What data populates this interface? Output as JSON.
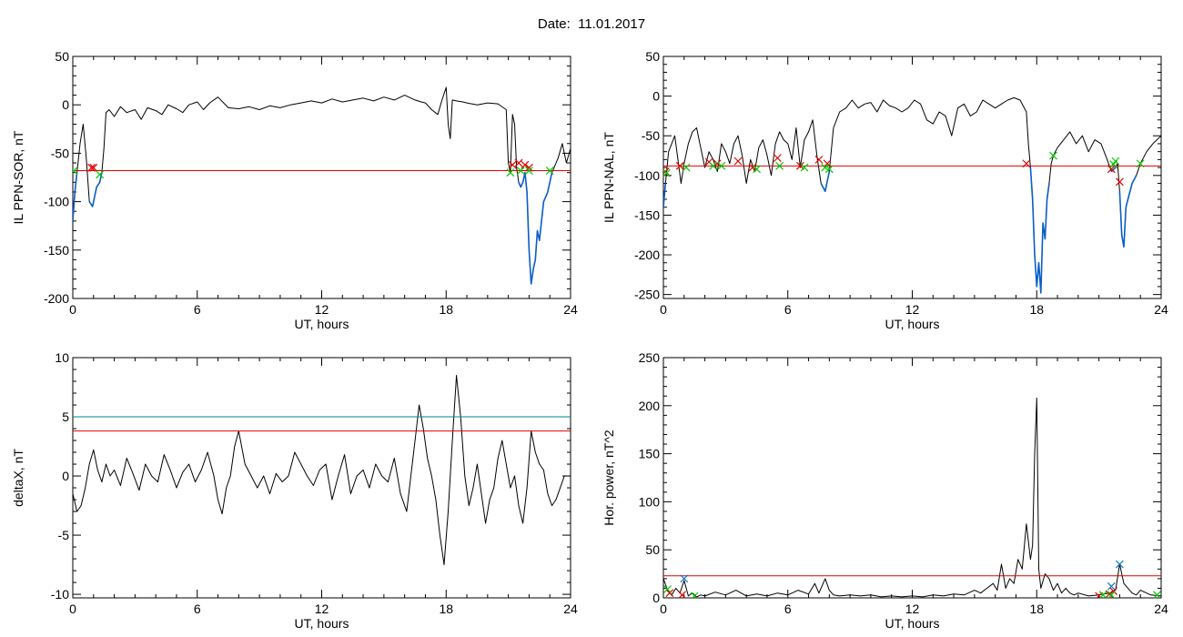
{
  "figure": {
    "title": "Date:  11.01.2017"
  },
  "colors": {
    "curve": "#000000",
    "below": "#0a5ec9",
    "threshold_red": "#e00000",
    "threshold_teal": "#008a8a",
    "mark_red": "#e00000",
    "mark_green": "#00c800",
    "mark_blue": "#0a78c8"
  },
  "chart_data": [
    {
      "id": "ppn-sor",
      "type": "line",
      "xlabel": "UT, hours",
      "ylabel": "IL PPN-SOR, nT",
      "xlim": [
        0,
        24
      ],
      "ylim": [
        -200,
        50
      ],
      "xticks": [
        0,
        6,
        12,
        18,
        24
      ],
      "yticks": [
        50,
        0,
        -50,
        -100,
        -150,
        -200
      ],
      "threshold": -68,
      "threshold_color": "threshold_red",
      "series": [
        {
          "x": [
            0,
            0.1,
            0.2,
            0.35,
            0.5,
            0.65,
            0.8,
            0.95,
            1.05,
            1.15,
            1.3,
            1.4,
            1.5,
            1.6,
            1.75,
            2.0,
            2.3,
            2.6,
            3.0,
            3.3,
            3.6,
            4.0,
            4.3,
            4.6,
            5.0,
            5.3,
            5.6,
            6.0,
            6.3,
            6.6,
            7.0,
            7.5,
            8.0,
            8.5,
            9.0,
            9.5,
            10.0,
            10.5,
            11.0,
            11.5,
            12.0,
            12.5,
            13.0,
            13.5,
            14.0,
            14.5,
            15.0,
            15.5,
            16.0,
            16.5,
            16.8,
            17.0,
            17.3,
            17.6,
            17.8,
            18.0,
            18.1,
            18.2,
            18.3,
            18.5,
            18.8,
            19.0,
            19.5,
            20.0,
            20.5,
            20.9,
            21.0,
            21.1,
            21.2,
            21.3,
            21.4,
            21.5,
            21.6,
            21.7,
            21.8,
            21.9,
            22.0,
            22.1,
            22.2,
            22.3,
            22.4,
            22.5,
            22.6,
            22.7,
            22.8,
            22.9,
            23.0,
            23.1,
            23.2,
            23.4,
            23.6,
            23.8,
            24.0
          ],
          "values": [
            -120,
            -90,
            -70,
            -40,
            -20,
            -55,
            -100,
            -105,
            -95,
            -85,
            -80,
            -70,
            -45,
            -8,
            -5,
            -12,
            -2,
            -8,
            -5,
            -15,
            -3,
            -6,
            -10,
            0,
            -4,
            -8,
            0,
            3,
            -5,
            2,
            8,
            -3,
            -4,
            -2,
            -5,
            -1,
            -3,
            0,
            2,
            4,
            2,
            6,
            3,
            5,
            7,
            4,
            8,
            5,
            10,
            5,
            3,
            2,
            -5,
            -10,
            5,
            18,
            -20,
            -35,
            5,
            4,
            3,
            2,
            0,
            2,
            1,
            -5,
            -60,
            -70,
            -10,
            -20,
            -65,
            -80,
            -85,
            -80,
            -70,
            -90,
            -150,
            -185,
            -170,
            -160,
            -130,
            -140,
            -120,
            -100,
            -95,
            -90,
            -80,
            -70,
            -65,
            -55,
            -40,
            -60,
            -45
          ]
        }
      ],
      "marks_red": [
        [
          0.9,
          -65
        ],
        [
          1.0,
          -65
        ],
        [
          21.2,
          -62
        ],
        [
          21.5,
          -60
        ],
        [
          21.8,
          -62
        ],
        [
          22.0,
          -65
        ]
      ],
      "marks_green": [
        [
          0.05,
          -68
        ],
        [
          1.3,
          -72
        ],
        [
          21.1,
          -70
        ],
        [
          21.6,
          -68
        ],
        [
          22.0,
          -68
        ],
        [
          23.0,
          -68
        ]
      ]
    },
    {
      "id": "ppn-nal",
      "type": "line",
      "xlabel": "UT, hours",
      "ylabel": "IL PPN-NAL, nT",
      "xlim": [
        0,
        24
      ],
      "ylim": [
        -255,
        50
      ],
      "xticks": [
        0,
        6,
        12,
        18,
        24
      ],
      "yticks": [
        50,
        0,
        -50,
        -100,
        -150,
        -200,
        -250
      ],
      "threshold": -88,
      "threshold_color": "threshold_red",
      "series": [
        {
          "x": [
            0,
            0.1,
            0.25,
            0.4,
            0.55,
            0.7,
            0.85,
            1.0,
            1.2,
            1.4,
            1.6,
            1.8,
            2.0,
            2.2,
            2.4,
            2.6,
            2.8,
            3.0,
            3.2,
            3.4,
            3.6,
            3.8,
            4.0,
            4.2,
            4.4,
            4.6,
            4.8,
            5.0,
            5.2,
            5.4,
            5.6,
            5.8,
            6.0,
            6.2,
            6.4,
            6.6,
            6.8,
            7.0,
            7.2,
            7.4,
            7.6,
            7.8,
            8.0,
            8.2,
            8.5,
            8.8,
            9.1,
            9.4,
            9.7,
            10.0,
            10.3,
            10.6,
            10.9,
            11.2,
            11.5,
            11.8,
            12.1,
            12.4,
            12.7,
            13.0,
            13.3,
            13.6,
            13.9,
            14.2,
            14.5,
            14.8,
            15.1,
            15.4,
            15.7,
            16.0,
            16.3,
            16.6,
            16.9,
            17.2,
            17.5,
            17.6,
            17.7,
            17.8,
            17.9,
            18.0,
            18.1,
            18.2,
            18.3,
            18.4,
            18.5,
            18.6,
            18.7,
            18.8,
            19.0,
            19.3,
            19.6,
            19.9,
            20.2,
            20.5,
            20.8,
            21.1,
            21.4,
            21.6,
            21.8,
            21.9,
            22.0,
            22.1,
            22.2,
            22.3,
            22.4,
            22.6,
            22.8,
            23.0,
            23.3,
            23.6,
            24.0
          ],
          "values": [
            -140,
            -110,
            -70,
            -60,
            -50,
            -80,
            -110,
            -85,
            -60,
            -45,
            -40,
            -65,
            -90,
            -70,
            -80,
            -95,
            -60,
            -70,
            -85,
            -60,
            -50,
            -75,
            -110,
            -80,
            -95,
            -65,
            -55,
            -75,
            -100,
            -60,
            -45,
            -55,
            -60,
            -80,
            -40,
            -90,
            -55,
            -45,
            -30,
            -75,
            -110,
            -120,
            -95,
            -40,
            -20,
            -15,
            -5,
            -15,
            -10,
            -8,
            -20,
            -5,
            -12,
            -15,
            -20,
            -15,
            -5,
            -10,
            -30,
            -35,
            -20,
            -25,
            -50,
            -15,
            -10,
            -25,
            -20,
            -5,
            -10,
            -15,
            -10,
            -5,
            -2,
            -5,
            -20,
            -60,
            -90,
            -130,
            -200,
            -240,
            -210,
            -248,
            -160,
            -180,
            -130,
            -110,
            -85,
            -75,
            -65,
            -55,
            -45,
            -60,
            -50,
            -70,
            -55,
            -60,
            -80,
            -95,
            -90,
            -85,
            -120,
            -175,
            -190,
            -140,
            -130,
            -110,
            -100,
            -85,
            -70,
            -60,
            -50
          ]
        }
      ],
      "marks_red": [
        [
          0.1,
          -95
        ],
        [
          0.8,
          -88
        ],
        [
          2.2,
          -83
        ],
        [
          2.6,
          -85
        ],
        [
          3.6,
          -82
        ],
        [
          4.3,
          -90
        ],
        [
          5.5,
          -78
        ],
        [
          6.6,
          -88
        ],
        [
          7.5,
          -80
        ],
        [
          7.9,
          -85
        ],
        [
          17.5,
          -85
        ],
        [
          21.6,
          -92
        ],
        [
          22.0,
          -108
        ]
      ],
      "marks_green": [
        [
          0.15,
          -97
        ],
        [
          1.1,
          -90
        ],
        [
          2.4,
          -88
        ],
        [
          2.8,
          -88
        ],
        [
          4.5,
          -92
        ],
        [
          5.6,
          -88
        ],
        [
          6.8,
          -90
        ],
        [
          7.8,
          -90
        ],
        [
          8.0,
          -92
        ],
        [
          18.8,
          -75
        ],
        [
          21.7,
          -86
        ],
        [
          21.8,
          -82
        ],
        [
          23.0,
          -85
        ]
      ]
    },
    {
      "id": "deltax",
      "type": "line",
      "xlabel": "UT, hours",
      "ylabel": "deltaX, nT",
      "xlim": [
        0,
        24
      ],
      "ylim": [
        -10.3,
        10
      ],
      "xticks": [
        0,
        6,
        12,
        18,
        24
      ],
      "yticks": [
        10,
        5,
        0,
        -5,
        -10
      ],
      "thresholds": [
        {
          "value": 5.0,
          "color": "threshold_teal"
        },
        {
          "value": 3.8,
          "color": "threshold_red"
        }
      ],
      "series": [
        {
          "x": [
            0,
            0.2,
            0.4,
            0.6,
            0.8,
            1.0,
            1.2,
            1.4,
            1.6,
            1.8,
            2.0,
            2.3,
            2.6,
            2.9,
            3.2,
            3.5,
            3.8,
            4.1,
            4.4,
            4.7,
            5.0,
            5.3,
            5.6,
            5.9,
            6.2,
            6.5,
            6.8,
            7.0,
            7.2,
            7.4,
            7.6,
            7.8,
            8.0,
            8.3,
            8.6,
            8.9,
            9.2,
            9.5,
            9.8,
            10.1,
            10.4,
            10.7,
            11.0,
            11.3,
            11.6,
            11.9,
            12.2,
            12.5,
            12.8,
            13.1,
            13.4,
            13.7,
            14.0,
            14.3,
            14.6,
            14.9,
            15.2,
            15.5,
            15.8,
            16.1,
            16.3,
            16.5,
            16.7,
            16.9,
            17.1,
            17.3,
            17.5,
            17.7,
            17.9,
            18.1,
            18.3,
            18.5,
            18.7,
            18.9,
            19.1,
            19.3,
            19.5,
            19.7,
            19.9,
            20.1,
            20.3,
            20.5,
            20.7,
            20.9,
            21.1,
            21.3,
            21.5,
            21.7,
            21.9,
            22.1,
            22.3,
            22.5,
            22.7,
            22.9,
            23.1,
            23.3,
            23.5,
            23.7,
            24.0
          ],
          "values": [
            -1.5,
            -3.0,
            -2.5,
            -1.0,
            1.0,
            2.2,
            0.5,
            -0.5,
            1.0,
            0.0,
            0.5,
            -0.8,
            1.5,
            0.2,
            -1.2,
            1.0,
            0.0,
            -0.5,
            1.8,
            0.5,
            -1.0,
            0.3,
            1.0,
            -0.5,
            0.5,
            2.0,
            0.0,
            -2.0,
            -3.2,
            -1.0,
            0.0,
            2.5,
            3.8,
            1.0,
            0.0,
            -1.0,
            0.0,
            -1.5,
            0.2,
            -0.5,
            0.0,
            2.0,
            1.0,
            0.0,
            -0.8,
            0.5,
            1.0,
            -2.0,
            0.0,
            1.8,
            -1.5,
            0.0,
            0.5,
            -1.0,
            1.0,
            0.0,
            -0.5,
            1.5,
            -1.5,
            -3.0,
            0.0,
            3.0,
            6.0,
            4.0,
            1.5,
            0.0,
            -2.0,
            -5.0,
            -7.5,
            -3.0,
            3.0,
            8.5,
            5.0,
            0.0,
            -2.5,
            -1.0,
            1.0,
            -1.5,
            -4.0,
            -2.0,
            -1.0,
            1.5,
            3.0,
            1.0,
            -1.0,
            0.0,
            -2.5,
            -4.0,
            -1.0,
            3.8,
            2.0,
            1.0,
            0.5,
            -1.5,
            -2.5,
            -2.0,
            -1.0,
            0.0,
            0.0
          ]
        }
      ]
    },
    {
      "id": "hor-power",
      "type": "line",
      "xlabel": "UT, hours",
      "ylabel": "Hor. power, nT^2",
      "xlim": [
        0,
        24
      ],
      "ylim": [
        0,
        250
      ],
      "xticks": [
        0,
        6,
        12,
        18,
        24
      ],
      "yticks": [
        250,
        200,
        150,
        100,
        50,
        0
      ],
      "threshold": 23,
      "threshold_color": "threshold_red",
      "series": [
        {
          "x": [
            0,
            0.2,
            0.4,
            0.6,
            0.8,
            1.0,
            1.2,
            1.4,
            1.6,
            1.8,
            2.0,
            2.5,
            3.0,
            3.5,
            4.0,
            4.5,
            5.0,
            5.5,
            6.0,
            6.5,
            7.0,
            7.3,
            7.5,
            7.8,
            8.0,
            8.2,
            8.5,
            9.0,
            9.5,
            10.0,
            10.5,
            11.0,
            11.5,
            12.0,
            12.5,
            13.0,
            13.5,
            14.0,
            14.5,
            15.0,
            15.3,
            15.6,
            15.9,
            16.1,
            16.3,
            16.5,
            16.7,
            16.9,
            17.1,
            17.3,
            17.5,
            17.7,
            17.8,
            17.9,
            18.0,
            18.1,
            18.2,
            18.4,
            18.6,
            18.8,
            19.0,
            19.2,
            19.4,
            19.6,
            19.8,
            20.0,
            20.5,
            21.0,
            21.5,
            21.8,
            22.0,
            22.2,
            22.4,
            22.6,
            22.8,
            23.0,
            23.5,
            24.0
          ],
          "values": [
            20,
            8,
            3,
            10,
            5,
            18,
            2,
            5,
            1,
            3,
            2,
            6,
            3,
            8,
            2,
            4,
            2,
            5,
            3,
            8,
            4,
            15,
            5,
            20,
            8,
            3,
            2,
            3,
            2,
            3,
            1,
            2,
            1,
            2,
            1,
            3,
            2,
            4,
            3,
            8,
            5,
            10,
            15,
            8,
            35,
            10,
            20,
            15,
            40,
            30,
            77,
            40,
            55,
            150,
            208,
            30,
            10,
            25,
            20,
            8,
            15,
            5,
            10,
            5,
            3,
            5,
            2,
            3,
            5,
            8,
            35,
            15,
            10,
            5,
            3,
            8,
            3,
            2
          ]
        }
      ],
      "marks_red": [
        [
          0.3,
          5
        ],
        [
          0.9,
          3
        ],
        [
          21.0,
          2
        ],
        [
          21.5,
          4
        ],
        [
          21.7,
          7
        ]
      ],
      "marks_green": [
        [
          0.2,
          9
        ],
        [
          1.5,
          2
        ],
        [
          21.2,
          3
        ],
        [
          21.6,
          3
        ],
        [
          23.8,
          3
        ]
      ],
      "marks_blue": [
        [
          1.0,
          20
        ],
        [
          21.6,
          12
        ],
        [
          22.0,
          35
        ]
      ]
    }
  ]
}
